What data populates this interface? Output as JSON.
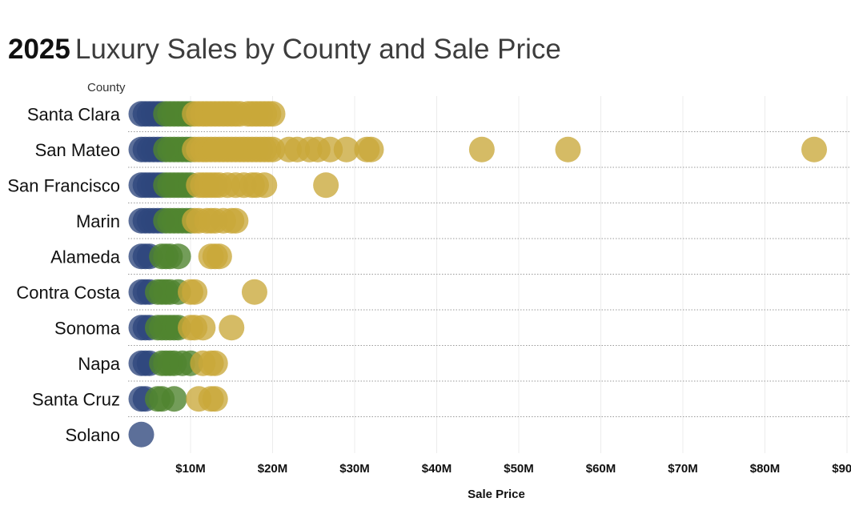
{
  "title": {
    "year": "2025",
    "text": "Luxury Sales by County and Sale Price"
  },
  "colors": {
    "tier1": "#2e467c",
    "tier2": "#508530",
    "tier3": "#c9a83a",
    "grid": "#ececec",
    "rowline": "#9a9a9a"
  },
  "chart_data": {
    "type": "scatter",
    "xlabel": "Sale Price",
    "ylabel": "County",
    "x_ticks": [
      10,
      20,
      30,
      40,
      50,
      60,
      70,
      80,
      90
    ],
    "x_tick_labels": [
      "$10M",
      "$20M",
      "$30M",
      "$40M",
      "$50M",
      "$60M",
      "$70M",
      "$80M",
      "$90M"
    ],
    "xlim": [
      2.5,
      93
    ],
    "units": "$M",
    "counties": [
      "Santa Clara",
      "San Mateo",
      "San Francisco",
      "Marin",
      "Alameda",
      "Contra Costa",
      "Sonoma",
      "Napa",
      "Santa Cruz",
      "Solano"
    ],
    "series": [
      {
        "county": "Santa Clara",
        "tier1": [
          4,
          4.5,
          5,
          5.5,
          6,
          6.5
        ],
        "tier2": [
          7,
          7.5,
          8,
          8.5,
          9,
          9.5,
          10
        ],
        "tier3": [
          10.5,
          11,
          11.5,
          12,
          12.5,
          13,
          13.5,
          14,
          14.5,
          15,
          15.5,
          16,
          17,
          17.5,
          18,
          18.5,
          19,
          19.5,
          20
        ]
      },
      {
        "county": "San Mateo",
        "tier1": [
          4,
          4.5,
          5,
          5.5,
          6,
          6.5
        ],
        "tier2": [
          7,
          7.5,
          8,
          8.5,
          9,
          9.5,
          10
        ],
        "tier3": [
          10.5,
          11,
          11.5,
          12,
          12.5,
          13,
          13.5,
          14,
          14.5,
          15,
          15.5,
          16,
          16.5,
          17,
          17.5,
          18,
          18.5,
          19,
          19.5,
          20,
          22,
          23,
          24.5,
          25.5,
          27,
          29,
          31.5,
          32,
          45.5,
          56,
          86
        ]
      },
      {
        "county": "San Francisco",
        "tier1": [
          4,
          4.5,
          5,
          5.5,
          6,
          6.5
        ],
        "tier2": [
          7,
          7.5,
          8,
          8.5,
          9,
          9.5,
          10
        ],
        "tier3": [
          11,
          11.5,
          12,
          12.5,
          13,
          13.5,
          14.5,
          15.5,
          16.5,
          17.5,
          18,
          19,
          26.5
        ]
      },
      {
        "county": "Marin",
        "tier1": [
          4,
          4.5,
          5,
          5.5,
          6,
          6.5
        ],
        "tier2": [
          7,
          7.5,
          8,
          8.5,
          9,
          9.5,
          10
        ],
        "tier3": [
          10.5,
          11,
          12,
          12.5,
          13,
          14,
          15,
          15.5
        ]
      },
      {
        "county": "Alameda",
        "tier1": [
          4,
          4.5,
          5
        ],
        "tier2": [
          6.5,
          7,
          7.5,
          8.5
        ],
        "tier3": [
          12.5,
          13,
          13.5
        ]
      },
      {
        "county": "Contra Costa",
        "tier1": [
          4,
          4.5,
          5
        ],
        "tier2": [
          6,
          6.5,
          7,
          7.5,
          8.5
        ],
        "tier3": [
          10,
          10.5,
          17.8
        ]
      },
      {
        "county": "Sonoma",
        "tier1": [
          4,
          4.5,
          5
        ],
        "tier2": [
          6,
          6.5,
          7,
          7.5,
          8,
          8.5
        ],
        "tier3": [
          10,
          10.5,
          11.5,
          15
        ]
      },
      {
        "county": "Napa",
        "tier1": [
          4,
          4.5,
          5
        ],
        "tier2": [
          6.5,
          7,
          7.5,
          8,
          9,
          10
        ],
        "tier3": [
          11.5,
          12.5,
          13
        ]
      },
      {
        "county": "Santa Cruz",
        "tier1": [
          4,
          4.5
        ],
        "tier2": [
          6,
          6.5,
          8
        ],
        "tier3": [
          11,
          12.5,
          13
        ]
      },
      {
        "county": "Solano",
        "tier1": [
          4
        ],
        "tier2": [],
        "tier3": []
      }
    ]
  }
}
